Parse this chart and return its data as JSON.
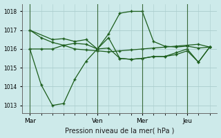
{
  "xlabel": "Pression niveau de la mer( hPa )",
  "bg_color": "#cdeaea",
  "grid_color": "#aacccc",
  "line_color": "#1a5c1a",
  "vline_color": "#3a6a3a",
  "ylim": [
    1012.6,
    1018.4
  ],
  "yticks": [
    1013,
    1014,
    1015,
    1016,
    1017,
    1018
  ],
  "xtick_labels": [
    "Mar",
    "Ven",
    "Mer",
    "Jeu"
  ],
  "xtick_positions": [
    0,
    36,
    60,
    84
  ],
  "vlines": [
    0,
    36,
    60,
    84
  ],
  "xlim": [
    -4,
    100
  ],
  "series": [
    {
      "x": [
        0,
        6,
        12,
        18,
        24,
        30,
        36,
        42,
        48,
        54,
        60,
        66,
        72,
        78,
        84,
        90,
        96
      ],
      "y": [
        1017.0,
        1016.6,
        1016.35,
        1016.2,
        1016.0,
        1015.95,
        1015.9,
        1015.85,
        1015.9,
        1015.95,
        1016.0,
        1016.05,
        1016.1,
        1016.15,
        1016.2,
        1016.25,
        1016.1
      ]
    },
    {
      "x": [
        0,
        6,
        12,
        18,
        24,
        30,
        36,
        42,
        48,
        54,
        60,
        66,
        72,
        78,
        84,
        90,
        96
      ],
      "y": [
        1016.0,
        1016.0,
        1016.0,
        1016.2,
        1016.3,
        1016.25,
        1016.0,
        1016.05,
        1015.5,
        1015.45,
        1015.5,
        1015.6,
        1015.6,
        1015.8,
        1016.0,
        1015.3,
        1016.1
      ]
    },
    {
      "x": [
        0,
        12,
        18,
        24,
        30,
        36,
        42,
        48,
        54,
        60,
        66,
        72,
        78,
        84,
        90,
        96
      ],
      "y": [
        1017.0,
        1016.5,
        1016.55,
        1016.4,
        1016.5,
        1016.0,
        1016.8,
        1017.9,
        1018.0,
        1018.0,
        1016.4,
        1016.15,
        1016.1,
        1016.15,
        1016.05,
        1016.1
      ]
    },
    {
      "x": [
        0,
        6,
        12,
        18,
        24,
        30,
        36,
        42,
        48,
        54,
        60,
        66,
        72,
        78,
        84,
        90,
        96
      ],
      "y": [
        1016.0,
        1014.1,
        1013.0,
        1013.1,
        1014.4,
        1015.35,
        1016.0,
        1016.6,
        1015.5,
        1015.45,
        1015.5,
        1015.6,
        1015.6,
        1015.7,
        1015.9,
        1015.3,
        1016.1
      ]
    }
  ]
}
